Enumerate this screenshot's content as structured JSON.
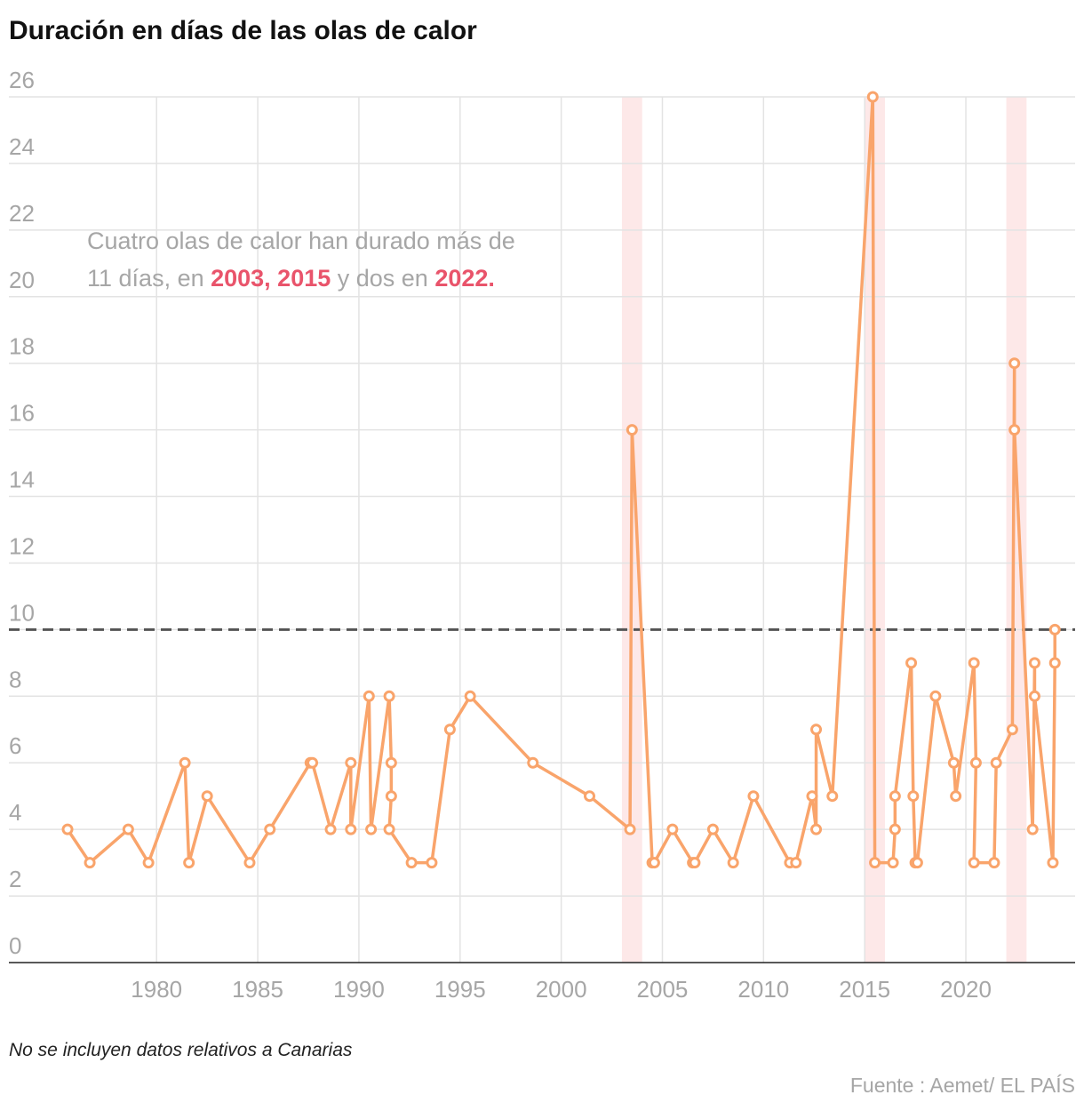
{
  "chart_data": {
    "type": "line",
    "title": "Duración en días de las olas de calor",
    "annotation": [
      "Cuatro olas de calor han durado más de",
      "11 días, en ",
      "2003, 2015",
      " y dos en ",
      "2022."
    ],
    "note": "No se incluyen datos relativos a Canarias",
    "source": "Fuente : Aemet/ EL PAÍS",
    "series": [
      {
        "name": "Duración",
        "color": "#f9a46b",
        "x": [
          1975.6,
          1976.7,
          1978.6,
          1979.6,
          1981.4,
          1981.6,
          1982.5,
          1984.6,
          1985.6,
          1987.6,
          1987.7,
          1988.6,
          1989.6,
          1989.6,
          1990.5,
          1990.6,
          1991.5,
          1991.6,
          1991.6,
          1991.5,
          1992.6,
          1993.6,
          1994.5,
          1995.5,
          1998.6,
          2001.4,
          2003.4,
          2003.5,
          2004.5,
          2004.6,
          2005.5,
          2006.5,
          2006.6,
          2007.5,
          2008.5,
          2009.5,
          2011.3,
          2011.6,
          2012.4,
          2012.6,
          2012.6,
          2013.4,
          2015.4,
          2015.5,
          2016.4,
          2016.5,
          2016.5,
          2017.3,
          2017.4,
          2017.5,
          2017.6,
          2018.5,
          2019.4,
          2019.5,
          2020.4,
          2020.5,
          2020.4,
          2021.4,
          2021.5,
          2022.3,
          2022.4,
          2022.4,
          2023.3,
          2023.4,
          2023.4,
          2024.3,
          2024.4,
          2024.4
        ],
        "values": [
          4,
          3,
          4,
          3,
          6,
          3,
          5,
          3,
          4,
          6,
          6,
          4,
          6,
          4,
          8,
          4,
          8,
          6,
          5,
          4,
          3,
          3,
          7,
          8,
          6,
          5,
          4,
          16,
          3,
          3,
          4,
          3,
          3,
          4,
          3,
          5,
          3,
          3,
          5,
          4,
          7,
          5,
          26,
          3,
          3,
          4,
          5,
          9,
          5,
          3,
          3,
          8,
          6,
          5,
          9,
          6,
          3,
          3,
          6,
          7,
          18,
          16,
          4,
          9,
          8,
          3,
          9,
          10
        ]
      }
    ],
    "xlim": [
      1972.7,
      2025.4
    ],
    "xticks": [
      1980,
      1985,
      1990,
      1995,
      2000,
      2005,
      2010,
      2015,
      2020
    ],
    "ylim": [
      0,
      26
    ],
    "yticks": [
      0,
      2,
      4,
      6,
      8,
      10,
      12,
      14,
      16,
      18,
      20,
      22,
      24,
      26
    ],
    "reference_line": 10,
    "highlight_bands": [
      [
        2003,
        2004
      ],
      [
        2015,
        2016
      ],
      [
        2022,
        2023
      ]
    ],
    "grid": true
  }
}
